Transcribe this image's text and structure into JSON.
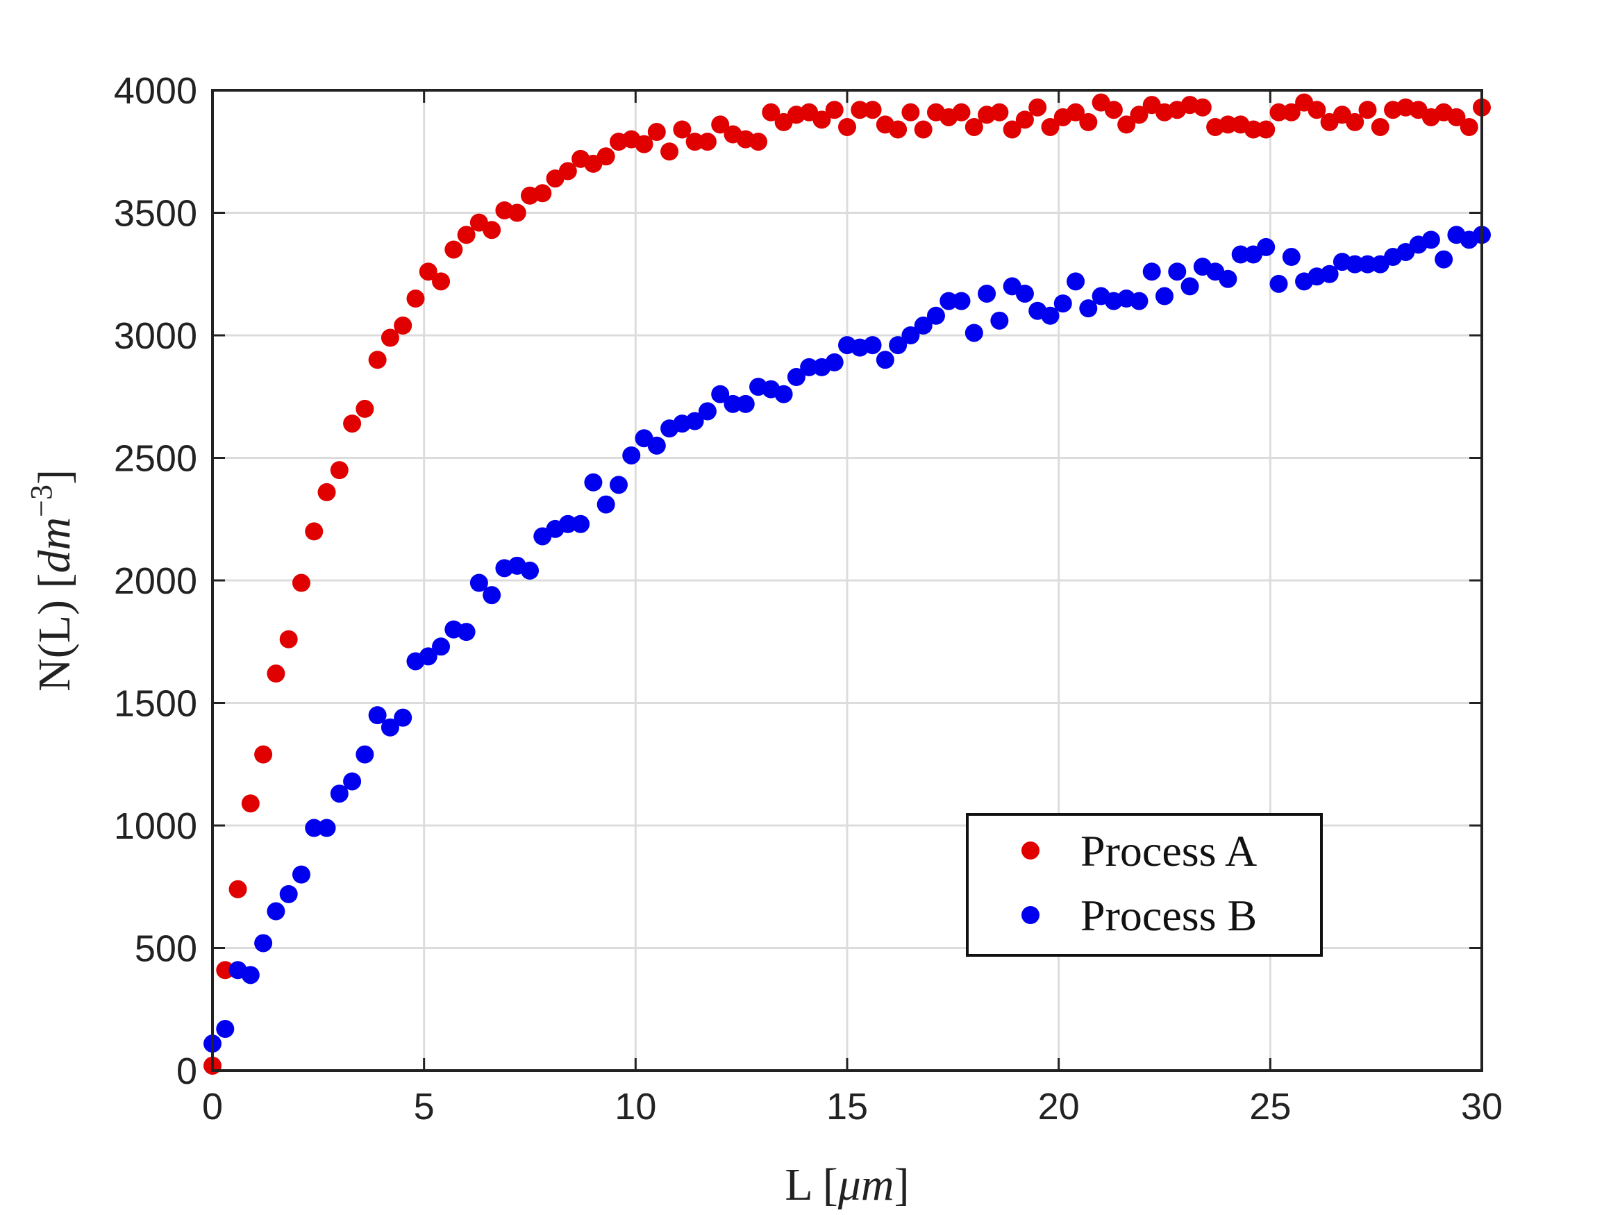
{
  "chart_data": {
    "type": "scatter",
    "title": "",
    "xlabel": {
      "main": "L [",
      "unit": "μm",
      "close": "]"
    },
    "ylabel": {
      "main": "N(L) [",
      "unit": "dm",
      "sup": "−3",
      "close": "]"
    },
    "xlim": [
      0,
      30
    ],
    "ylim": [
      0,
      4000
    ],
    "xticks": [
      0,
      5,
      10,
      15,
      20,
      25,
      30
    ],
    "yticks": [
      0,
      500,
      1000,
      1500,
      2000,
      2500,
      3000,
      3500,
      4000
    ],
    "grid": true,
    "legend_position": "lower-right",
    "series": [
      {
        "name": "Process A",
        "color": "#e00000",
        "x": [
          0.0,
          0.3,
          0.6,
          0.9,
          1.2,
          1.5,
          1.8,
          2.1,
          2.4,
          2.7,
          3.0,
          3.3,
          3.6,
          3.9,
          4.2,
          4.5,
          4.8,
          5.1,
          5.4,
          5.7,
          6.0,
          6.3,
          6.6,
          6.9,
          7.2,
          7.5,
          7.8,
          8.1,
          8.4,
          8.7,
          9.0,
          9.3,
          9.6,
          9.9,
          10.2,
          10.5,
          10.8,
          11.1,
          11.4,
          11.7,
          12.0,
          12.3,
          12.6,
          12.9,
          13.2,
          13.5,
          13.8,
          14.1,
          14.4,
          14.7,
          15.0,
          15.3,
          15.6,
          15.9,
          16.2,
          16.5,
          16.8,
          17.1,
          17.4,
          17.7,
          18.0,
          18.3,
          18.6,
          18.9,
          19.2,
          19.5,
          19.8,
          20.1,
          20.4,
          20.7,
          21.0,
          21.3,
          21.6,
          21.9,
          22.2,
          22.5,
          22.8,
          23.1,
          23.4,
          23.7,
          24.0,
          24.3,
          24.6,
          24.9,
          25.2,
          25.5,
          25.8,
          26.1,
          26.4,
          26.7,
          27.0,
          27.3,
          27.6,
          27.9,
          28.2,
          28.5,
          28.8,
          29.1,
          29.4,
          29.7,
          30.0
        ],
        "y": [
          20,
          410,
          740,
          1090,
          1290,
          1620,
          1760,
          1990,
          2200,
          2360,
          2450,
          2640,
          2700,
          2900,
          2990,
          3040,
          3150,
          3260,
          3220,
          3350,
          3410,
          3460,
          3430,
          3510,
          3500,
          3570,
          3580,
          3640,
          3670,
          3720,
          3700,
          3730,
          3790,
          3800,
          3780,
          3830,
          3750,
          3840,
          3790,
          3790,
          3860,
          3820,
          3800,
          3790,
          3910,
          3870,
          3900,
          3910,
          3880,
          3920,
          3850,
          3920,
          3920,
          3860,
          3840,
          3910,
          3840,
          3910,
          3890,
          3910,
          3850,
          3900,
          3910,
          3840,
          3880,
          3930,
          3850,
          3890,
          3910,
          3870,
          3950,
          3920,
          3860,
          3900,
          3940,
          3910,
          3920,
          3940,
          3930,
          3850,
          3860,
          3860,
          3840,
          3840,
          3910,
          3910,
          3950,
          3920,
          3870,
          3900,
          3870,
          3920,
          3850,
          3920,
          3930,
          3920,
          3890,
          3910,
          3890,
          3850,
          3930
        ]
      },
      {
        "name": "Process B",
        "color": "#0000ee",
        "x": [
          0.0,
          0.3,
          0.6,
          0.9,
          1.2,
          1.5,
          1.8,
          2.1,
          2.4,
          2.7,
          3.0,
          3.3,
          3.6,
          3.9,
          4.2,
          4.5,
          4.8,
          5.1,
          5.4,
          5.7,
          6.0,
          6.3,
          6.6,
          6.9,
          7.2,
          7.5,
          7.8,
          8.1,
          8.4,
          8.7,
          9.0,
          9.3,
          9.6,
          9.9,
          10.2,
          10.5,
          10.8,
          11.1,
          11.4,
          11.7,
          12.0,
          12.3,
          12.6,
          12.9,
          13.2,
          13.5,
          13.8,
          14.1,
          14.4,
          14.7,
          15.0,
          15.3,
          15.6,
          15.9,
          16.2,
          16.5,
          16.8,
          17.1,
          17.4,
          17.7,
          18.0,
          18.3,
          18.6,
          18.9,
          19.2,
          19.5,
          19.8,
          20.1,
          20.4,
          20.7,
          21.0,
          21.3,
          21.6,
          21.9,
          22.2,
          22.5,
          22.8,
          23.1,
          23.4,
          23.7,
          24.0,
          24.3,
          24.6,
          24.9,
          25.2,
          25.5,
          25.8,
          26.1,
          26.4,
          26.7,
          27.0,
          27.3,
          27.6,
          27.9,
          28.2,
          28.5,
          28.8,
          29.1,
          29.4,
          29.7,
          30.0
        ],
        "y": [
          110,
          170,
          410,
          390,
          520,
          650,
          720,
          800,
          990,
          990,
          1130,
          1180,
          1290,
          1450,
          1400,
          1440,
          1670,
          1690,
          1730,
          1800,
          1790,
          1990,
          1940,
          2050,
          2060,
          2040,
          2180,
          2210,
          2230,
          2230,
          2400,
          2310,
          2390,
          2510,
          2580,
          2550,
          2620,
          2640,
          2650,
          2690,
          2760,
          2720,
          2720,
          2790,
          2780,
          2760,
          2830,
          2870,
          2870,
          2890,
          2960,
          2950,
          2960,
          2900,
          2960,
          3000,
          3040,
          3080,
          3140,
          3140,
          3010,
          3170,
          3060,
          3200,
          3170,
          3100,
          3080,
          3130,
          3220,
          3110,
          3160,
          3140,
          3150,
          3140,
          3260,
          3160,
          3260,
          3200,
          3280,
          3260,
          3230,
          3330,
          3330,
          3360,
          3210,
          3320,
          3220,
          3240,
          3250,
          3300,
          3290,
          3290,
          3290,
          3320,
          3340,
          3370,
          3390,
          3310,
          3410,
          3390,
          3410
        ]
      }
    ]
  }
}
